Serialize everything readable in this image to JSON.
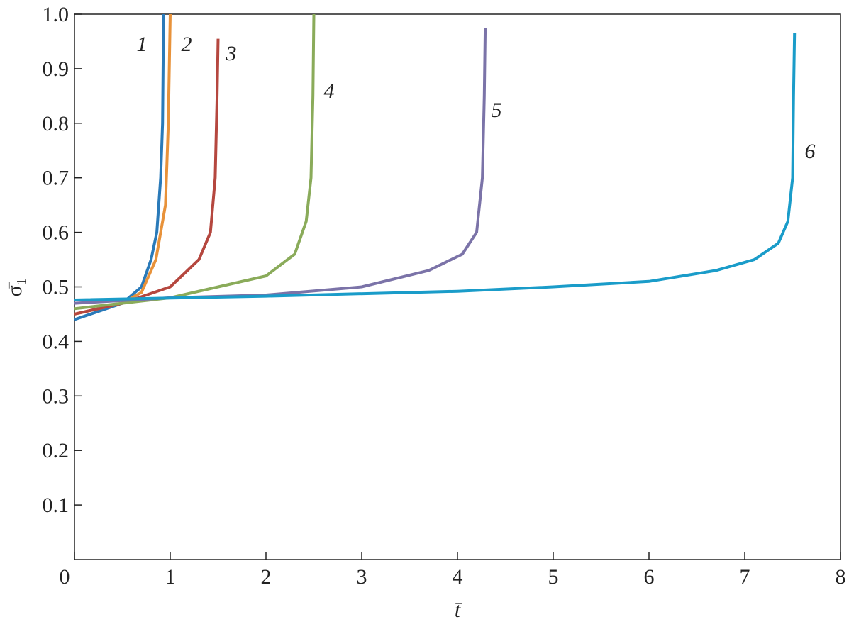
{
  "chart_data": {
    "type": "line",
    "x_label": "t̄",
    "y_label": "σ̄₁",
    "xlim": [
      0,
      8
    ],
    "ylim": [
      0,
      1
    ],
    "xticks": [
      0,
      1,
      2,
      3,
      4,
      5,
      6,
      7,
      8
    ],
    "yticks": [
      0.1,
      0.2,
      0.3,
      0.4,
      0.5,
      0.6,
      0.7,
      0.8,
      0.9,
      {
        "value": 1,
        "label": "1.0"
      }
    ],
    "series": [
      {
        "name": "1",
        "color": "#2a7ab9",
        "x": [
          0,
          0.5,
          0.7,
          0.8,
          0.86,
          0.9,
          0.92,
          0.93
        ],
        "values": [
          0.44,
          0.47,
          0.5,
          0.55,
          0.6,
          0.7,
          0.8,
          1.0
        ]
      },
      {
        "name": "2",
        "color": "#e8923a",
        "x": [
          0,
          0.5,
          0.7,
          0.85,
          0.95,
          0.98,
          1.0
        ],
        "values": [
          0.45,
          0.47,
          0.49,
          0.55,
          0.65,
          0.8,
          1.0
        ]
      },
      {
        "name": "3",
        "color": "#b5473f",
        "x": [
          0,
          0.5,
          1.0,
          1.3,
          1.42,
          1.47,
          1.49,
          1.5
        ],
        "values": [
          0.45,
          0.47,
          0.5,
          0.55,
          0.6,
          0.7,
          0.85,
          0.955
        ]
      },
      {
        "name": "4",
        "color": "#8aab5a",
        "x": [
          0,
          1,
          1.5,
          2,
          2.3,
          2.42,
          2.47,
          2.49,
          2.5
        ],
        "values": [
          0.46,
          0.48,
          0.5,
          0.52,
          0.56,
          0.62,
          0.7,
          0.85,
          1.0
        ]
      },
      {
        "name": "5",
        "color": "#7b73a8",
        "x": [
          0,
          1,
          2,
          3,
          3.7,
          4.05,
          4.2,
          4.26,
          4.28,
          4.29
        ],
        "values": [
          0.47,
          0.48,
          0.485,
          0.5,
          0.53,
          0.56,
          0.6,
          0.7,
          0.85,
          0.975
        ]
      },
      {
        "name": "6",
        "color": "#1a9cc9",
        "x": [
          0,
          2,
          4,
          5,
          6,
          6.7,
          7.1,
          7.35,
          7.45,
          7.5,
          7.51,
          7.52
        ],
        "values": [
          0.476,
          0.483,
          0.492,
          0.5,
          0.51,
          0.53,
          0.55,
          0.58,
          0.62,
          0.7,
          0.85,
          0.965
        ]
      }
    ]
  }
}
